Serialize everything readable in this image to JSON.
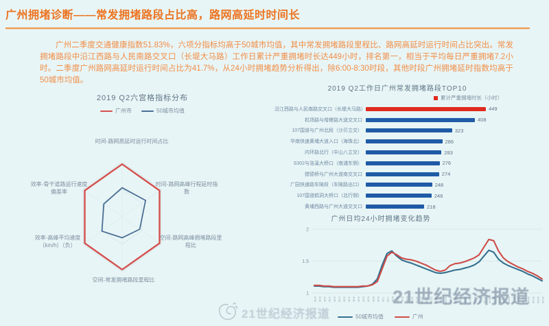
{
  "header": {
    "title": "广州拥堵诊断——常发拥堵路段占比高，路网高延时时间长"
  },
  "intro": {
    "text": "广州二季度交通健康指数51.83%，六项分指标均高于50城市均值，其中常发拥堵路段里程比、路网高延时运行时间占比突出。常发拥堵路段中沿江西路与人民南路交叉口（长堤大马路）工作日累计严重拥堵时长达449小时，排名第一，相当于平均每日严重拥堵7.2小时。二季度广州路网高延时运行时间占比为41.7%，从24小时拥堵趋势分析得出，除6:00-8:30时段，其他时段广州拥堵延时指数均高于50城市均值。"
  },
  "colors": {
    "accent_orange": "#ec7421",
    "red_series": "#cd4b47",
    "bar_red": "#e02a1e",
    "bar_blue": "#1f5ba6",
    "line_blue": "#34708f",
    "radar_red": "#d4504e",
    "radar_blue": "#4a6e94"
  },
  "watermarks": {
    "big": "21世纪经济报道",
    "small": "21世纪经济报道",
    "logo": "scribble-logo"
  },
  "chart_data": [
    {
      "id": "radar",
      "type": "radar",
      "title": "2019 Q2六宫格指标分布",
      "legend_position": "top",
      "max": 1,
      "categories": [
        "时间-路网高延时运行时间占比",
        "时间-路网高峰行程延时指数",
        "空间-路网高峰拥堵路段里程比",
        "空间-常发拥堵路段里程比",
        "效率-高峰平均速度（km/h）（负）",
        "效率-骨干道路运行速度偏差率"
      ],
      "series": [
        {
          "name": "广州市",
          "color": "#d4504e",
          "values": [
            0.96,
            0.96,
            0.96,
            0.96,
            0.96,
            0.96
          ]
        },
        {
          "name": "50城市均值",
          "color": "#4a6e94",
          "values": [
            0.53,
            0.6,
            0.45,
            0.38,
            0.52,
            0.47
          ]
        }
      ]
    },
    {
      "id": "bars",
      "type": "bar",
      "title": "2019 Q2工作日广州常发拥堵路段TOP10",
      "legend": "累计严重拥堵时长（小时）",
      "legend_color": "#e02a1e",
      "categories": [
        "沿江西路与人民南路交叉口（长堤大马路）",
        "机场路与增槎路大道交叉口",
        "107国道与广州北段（沙贝立交）",
        "华南快速黄埔大道入口（海珠北）",
        "内环路北行（中山八立交）",
        "S302与洛溪大桥口（南浦东侧）",
        "猎德桥与广州大道南交叉口",
        "广园快速路车陂段（车陂路出口）",
        "107国道鹤洞大桥口（北行侧）",
        "黄埔西路与广州大道交叉口"
      ],
      "values": [
        449,
        408,
        323,
        286,
        283,
        276,
        274,
        248,
        246,
        218
      ],
      "bar_colors": [
        "#e02a1e",
        "#1f5ba6",
        "#1f5ba6",
        "#1f5ba6",
        "#1f5ba6",
        "#1f5ba6",
        "#1f5ba6",
        "#1f5ba6",
        "#1f5ba6",
        "#1f5ba6"
      ]
    },
    {
      "id": "line",
      "type": "line",
      "title": "广州日均24小时拥堵变化趋势",
      "ylim": [
        1,
        2
      ],
      "yticks": [
        "1",
        "1.5",
        "2"
      ],
      "grid": true,
      "legend_position": "bottom",
      "x_labels": [
        "0:00",
        "0:30",
        "1:00",
        "1:30",
        "2:00",
        "2:30",
        "3:00",
        "3:30",
        "4:00",
        "4:30",
        "5:00",
        "5:30",
        "6:00",
        "6:30",
        "7:00",
        "7:30",
        "8:00",
        "8:30",
        "9:00",
        "9:30",
        "10:00",
        "10:30",
        "11:00",
        "11:30",
        "12:00",
        "12:30",
        "13:00",
        "13:30",
        "14:00",
        "14:30",
        "15:00",
        "15:30",
        "16:00",
        "16:30",
        "17:00",
        "17:30",
        "18:00",
        "18:30",
        "19:00",
        "19:30",
        "20:00",
        "20:30",
        "21:00",
        "21:30",
        "22:00",
        "22:30",
        "23:00",
        "23:30"
      ],
      "series": [
        {
          "name": "50城市均值",
          "color": "#34708f",
          "values": [
            1.11,
            1.11,
            1.1,
            1.1,
            1.09,
            1.09,
            1.09,
            1.09,
            1.09,
            1.09,
            1.1,
            1.11,
            1.14,
            1.22,
            1.44,
            1.62,
            1.66,
            1.58,
            1.52,
            1.49,
            1.47,
            1.44,
            1.41,
            1.38,
            1.35,
            1.32,
            1.31,
            1.32,
            1.34,
            1.36,
            1.37,
            1.39,
            1.41,
            1.44,
            1.49,
            1.58,
            1.67,
            1.64,
            1.53,
            1.47,
            1.43,
            1.4,
            1.37,
            1.34,
            1.3,
            1.27,
            1.23,
            1.19
          ]
        },
        {
          "name": "广州",
          "color": "#cd4b47",
          "values": [
            1.12,
            1.12,
            1.11,
            1.11,
            1.1,
            1.1,
            1.1,
            1.1,
            1.1,
            1.1,
            1.11,
            1.11,
            1.13,
            1.18,
            1.38,
            1.58,
            1.64,
            1.6,
            1.55,
            1.53,
            1.52,
            1.5,
            1.47,
            1.44,
            1.4,
            1.36,
            1.34,
            1.36,
            1.43,
            1.46,
            1.47,
            1.49,
            1.52,
            1.55,
            1.6,
            1.72,
            1.84,
            1.82,
            1.66,
            1.55,
            1.49,
            1.45,
            1.41,
            1.38,
            1.34,
            1.31,
            1.27,
            1.22
          ]
        }
      ]
    }
  ]
}
